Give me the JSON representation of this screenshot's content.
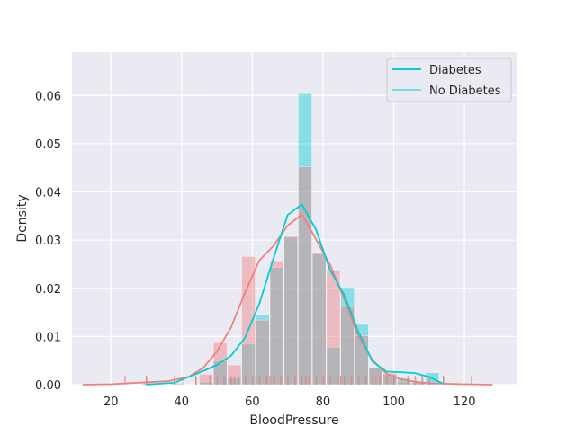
{
  "chart_data": {
    "type": "histogram",
    "xlabel": "BloodPressure",
    "ylabel": "Density",
    "xlim": [
      9,
      135
    ],
    "ylim": [
      0,
      0.069
    ],
    "xticks": [
      20,
      40,
      60,
      80,
      100,
      120
    ],
    "yticks": [
      0.0,
      0.01,
      0.02,
      0.03,
      0.04,
      0.05,
      0.06
    ],
    "ytick_labels": [
      "0.00",
      "0.01",
      "0.02",
      "0.03",
      "0.04",
      "0.05",
      "0.06"
    ],
    "grid": true,
    "background": "#eaeaf2",
    "legend": {
      "position": "upper-right",
      "entries": [
        "Diabetes",
        "No Diabetes"
      ]
    },
    "series": [
      {
        "name": "Diabetes",
        "color": "#00ced1",
        "bar_width": 4,
        "bar_lefts": [
          29,
          45,
          49,
          53,
          57,
          61,
          65,
          69,
          73,
          77,
          81,
          85,
          89,
          93,
          97,
          101,
          105,
          109
        ],
        "bar_heights": [
          0.0005,
          0.0005,
          0.0049,
          0.0014,
          0.0084,
          0.0146,
          0.0243,
          0.0306,
          0.0604,
          0.0271,
          0.0077,
          0.0202,
          0.0125,
          0.0035,
          0.0021,
          0.0014,
          0.0007,
          0.0025
        ],
        "kde_x": [
          30,
          34,
          38,
          40,
          42,
          46,
          50,
          54,
          58,
          62,
          66,
          70,
          74,
          78,
          82,
          86,
          90,
          94,
          98,
          102,
          106,
          110,
          114
        ],
        "kde_y": [
          0.0,
          0.0002,
          0.0004,
          0.001,
          0.0016,
          0.0028,
          0.0041,
          0.006,
          0.0098,
          0.0168,
          0.0262,
          0.0352,
          0.0374,
          0.0322,
          0.0238,
          0.0186,
          0.011,
          0.0048,
          0.0027,
          0.0026,
          0.0024,
          0.0016,
          0.0002
        ],
        "rug_x": [
          30,
          40,
          44,
          48,
          50,
          52,
          54,
          56,
          58,
          60,
          62,
          64,
          66,
          68,
          70,
          72,
          74,
          75,
          76,
          78,
          80,
          82,
          84,
          86,
          88,
          90,
          92,
          94,
          96,
          98,
          100,
          102,
          104,
          106,
          108,
          110,
          114
        ]
      },
      {
        "name": "No Diabetes",
        "color": "#f08080",
        "bar_width": 4,
        "bar_lefts": [
          29,
          37,
          45,
          49,
          53,
          57,
          61,
          65,
          69,
          73,
          77,
          81,
          85,
          89,
          93,
          97,
          101,
          105,
          109
        ],
        "bar_heights": [
          0.0003,
          0.0003,
          0.0022,
          0.0087,
          0.0041,
          0.0266,
          0.0134,
          0.0257,
          0.0308,
          0.0452,
          0.0274,
          0.0238,
          0.0162,
          0.0102,
          0.0035,
          0.0024,
          0.0007,
          0.0004,
          0.0004
        ],
        "kde_x": [
          12,
          20,
          30,
          36,
          42,
          46,
          50,
          54,
          58,
          62,
          66,
          70,
          74,
          78,
          82,
          86,
          90,
          94,
          98,
          102,
          106,
          110,
          114,
          120,
          128
        ],
        "kde_y": [
          0.0,
          0.0001,
          0.0005,
          0.0007,
          0.0016,
          0.0034,
          0.0069,
          0.0119,
          0.0192,
          0.0258,
          0.0288,
          0.033,
          0.0353,
          0.0302,
          0.0249,
          0.0178,
          0.0101,
          0.0051,
          0.0023,
          0.0011,
          0.0006,
          0.0003,
          0.0002,
          0.0001,
          0.0
        ]
      }
    ],
    "rug_combined_x": [
      24,
      30,
      38,
      44,
      48,
      50,
      52,
      54,
      55,
      56,
      58,
      60,
      61,
      62,
      64,
      65,
      66,
      68,
      70,
      72,
      74,
      75,
      76,
      78,
      80,
      82,
      84,
      85,
      86,
      88,
      90,
      92,
      94,
      95,
      96,
      98,
      100,
      104,
      106,
      108,
      110,
      114,
      122
    ]
  }
}
